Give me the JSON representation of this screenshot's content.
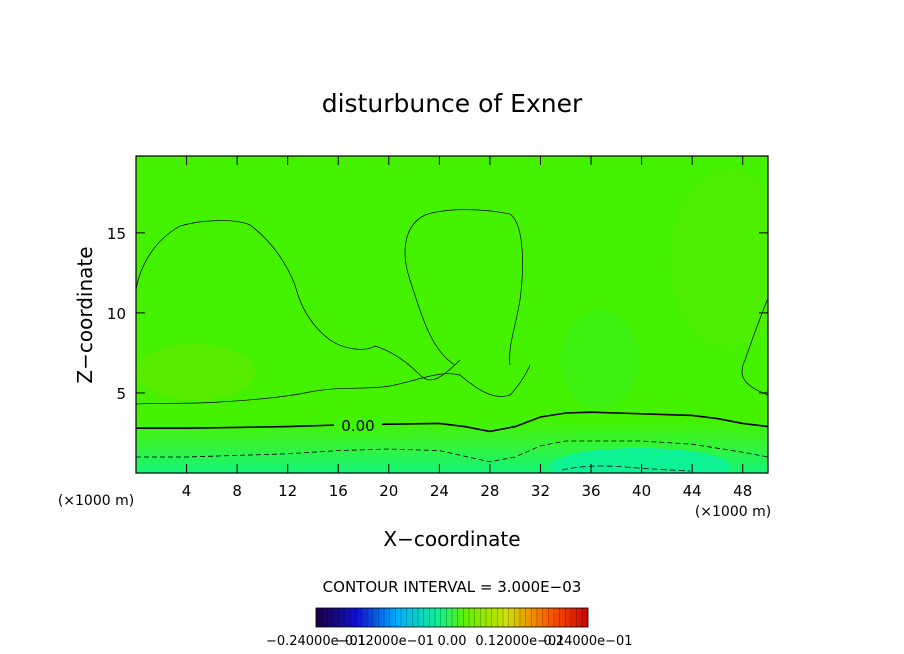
{
  "chart_data": {
    "type": "contour",
    "title": "disturbunce of Exner",
    "xlabel": "X−coordinate",
    "ylabel": "Z−coordinate",
    "x_unit_label": "(×1000 m)",
    "x_unit_label_right": "(×1000 m)",
    "xlim": [
      0,
      50
    ],
    "ylim": [
      0,
      19.8
    ],
    "x_ticks": [
      4,
      8,
      12,
      16,
      20,
      24,
      28,
      32,
      36,
      40,
      44,
      48
    ],
    "y_ticks": [
      5,
      10,
      15
    ],
    "contour_interval_text": "CONTOUR INTERVAL = 3.000E−03",
    "contour_labels": [
      {
        "text": "0.00",
        "x": 16.5,
        "z": 3.0
      }
    ],
    "zero_contour": {
      "x": [
        0,
        4,
        8,
        12,
        16,
        20,
        24,
        26,
        28,
        30,
        32,
        34,
        36,
        40,
        44,
        46,
        48,
        50
      ],
      "z": [
        2.8,
        2.8,
        2.85,
        2.9,
        3.0,
        3.05,
        3.1,
        2.9,
        2.6,
        2.9,
        3.5,
        3.75,
        3.8,
        3.7,
        3.6,
        3.4,
        3.1,
        2.9
      ]
    },
    "negative_contour": {
      "x": [
        0,
        4,
        8,
        12,
        16,
        20,
        24,
        28,
        30,
        32,
        34,
        36,
        40,
        44,
        48,
        50
      ],
      "z": [
        1.0,
        1.0,
        1.1,
        1.2,
        1.4,
        1.5,
        1.4,
        0.7,
        1.0,
        1.7,
        2.0,
        2.0,
        2.0,
        1.8,
        1.3,
        1.0
      ]
    },
    "colorbar": {
      "labels": [
        "−0.24000e−01",
        "−0.12000e−01",
        "0.00",
        "0.12000e−01",
        "0.24000e−01"
      ],
      "min": -0.024,
      "max": 0.024
    },
    "colors": {
      "background_field": "#44f200",
      "near_zero": "#3ef40a",
      "negative_field": "#10f47e",
      "positive_field": "#62e800"
    }
  }
}
